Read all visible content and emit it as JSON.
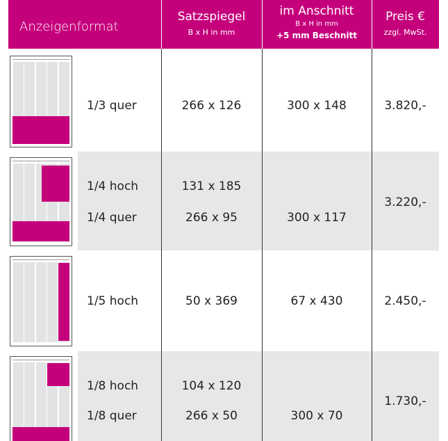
{
  "header": {
    "format": "Anzeigenformat",
    "satzspiegel": {
      "title": "Satzspiegel",
      "unit": "B x H in mm"
    },
    "anschnitt": {
      "title": "im Anschnitt",
      "unit": "B x H in mm",
      "note": "+5 mm Beschnitt"
    },
    "preis": {
      "title": "Preis €",
      "note": "zzgl. MwSt."
    }
  },
  "rows": [
    {
      "price": "3.820,-",
      "items": [
        {
          "format": "1/3 quer",
          "satzspiegel": "266 x 126",
          "anschnitt": "300 x 148"
        }
      ]
    },
    {
      "price": "3.220,-",
      "items": [
        {
          "format": "1/4 hoch",
          "satzspiegel": "131 x 185"
        },
        {
          "format": "1/4 quer",
          "satzspiegel": "266 x 95",
          "anschnitt": "300 x 117"
        }
      ]
    },
    {
      "price": "2.450,-",
      "items": [
        {
          "format": "1/5 hoch",
          "satzspiegel": "50 x 369",
          "anschnitt": "67 x 430"
        }
      ]
    },
    {
      "price": "1.730,-",
      "items": [
        {
          "format": "1/8 hoch",
          "satzspiegel": "104 x 120"
        },
        {
          "format": "1/8 quer",
          "satzspiegel": "266 x 50",
          "anschnitt": "300 x 70"
        }
      ]
    }
  ]
}
